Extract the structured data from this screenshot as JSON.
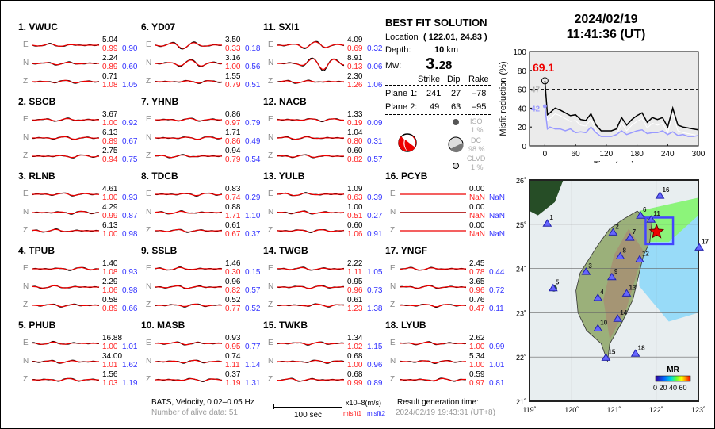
{
  "stations": [
    {
      "title": "1.  VWUC",
      "comps": [
        {
          "c": "E",
          "amp": "5.04",
          "m1": "0.99",
          "m2": "0.90"
        },
        {
          "c": "N",
          "amp": "2.24",
          "m1": "0.89",
          "m2": "0.60"
        },
        {
          "c": "Z",
          "amp": "0.71",
          "m1": "1.08",
          "m2": "1.05"
        }
      ]
    },
    {
      "title": "2.  SBCB",
      "comps": [
        {
          "c": "E",
          "amp": "3.67",
          "m1": "1.00",
          "m2": "0.92"
        },
        {
          "c": "N",
          "amp": "6.13",
          "m1": "0.89",
          "m2": "0.67"
        },
        {
          "c": "Z",
          "amp": "2.75",
          "m1": "0.94",
          "m2": "0.75"
        }
      ]
    },
    {
      "title": "3.  RLNB",
      "comps": [
        {
          "c": "E",
          "amp": "4.61",
          "m1": "1.00",
          "m2": "0.93"
        },
        {
          "c": "N",
          "amp": "4.29",
          "m1": "0.99",
          "m2": "0.87"
        },
        {
          "c": "Z",
          "amp": "6.13",
          "m1": "1.00",
          "m2": "0.98"
        }
      ]
    },
    {
      "title": "4.  TPUB",
      "comps": [
        {
          "c": "E",
          "amp": "1.40",
          "m1": "1.08",
          "m2": "0.93"
        },
        {
          "c": "N",
          "amp": "2.29",
          "m1": "1.06",
          "m2": "0.98"
        },
        {
          "c": "Z",
          "amp": "0.58",
          "m1": "0.89",
          "m2": "0.66"
        }
      ]
    },
    {
      "title": "5.  PHUB",
      "comps": [
        {
          "c": "E",
          "amp": "16.88",
          "m1": "1.00",
          "m2": "1.01"
        },
        {
          "c": "N",
          "amp": "34.00",
          "m1": "1.01",
          "m2": "1.62"
        },
        {
          "c": "Z",
          "amp": "1.56",
          "m1": "1.03",
          "m2": "1.19"
        }
      ]
    },
    {
      "title": "6.  YD07",
      "comps": [
        {
          "c": "E",
          "amp": "3.50",
          "m1": "0.33",
          "m2": "0.18"
        },
        {
          "c": "N",
          "amp": "3.16",
          "m1": "1.00",
          "m2": "0.56"
        },
        {
          "c": "Z",
          "amp": "1.55",
          "m1": "0.79",
          "m2": "0.51"
        }
      ]
    },
    {
      "title": "7.  YHNB",
      "comps": [
        {
          "c": "E",
          "amp": "0.86",
          "m1": "0.97",
          "m2": "0.79"
        },
        {
          "c": "N",
          "amp": "1.71",
          "m1": "0.86",
          "m2": "0.49"
        },
        {
          "c": "Z",
          "amp": "0.94",
          "m1": "0.79",
          "m2": "0.54"
        }
      ]
    },
    {
      "title": "8.  TDCB",
      "comps": [
        {
          "c": "E",
          "amp": "0.83",
          "m1": "0.74",
          "m2": "0.29"
        },
        {
          "c": "N",
          "amp": "0.88",
          "m1": "1.71",
          "m2": "1.10"
        },
        {
          "c": "Z",
          "amp": "0.61",
          "m1": "0.67",
          "m2": "0.37"
        }
      ]
    },
    {
      "title": "9.  SSLB",
      "comps": [
        {
          "c": "E",
          "amp": "1.46",
          "m1": "0.30",
          "m2": "0.15"
        },
        {
          "c": "N",
          "amp": "0.96",
          "m1": "0.82",
          "m2": "0.57"
        },
        {
          "c": "Z",
          "amp": "0.52",
          "m1": "0.77",
          "m2": "0.52"
        }
      ]
    },
    {
      "title": "10. MASB",
      "comps": [
        {
          "c": "E",
          "amp": "0.93",
          "m1": "0.95",
          "m2": "0.77"
        },
        {
          "c": "N",
          "amp": "0.74",
          "m1": "1.11",
          "m2": "1.14"
        },
        {
          "c": "Z",
          "amp": "0.37",
          "m1": "1.19",
          "m2": "1.31"
        }
      ]
    },
    {
      "title": "11. SXI1",
      "comps": [
        {
          "c": "E",
          "amp": "4.09",
          "m1": "0.69",
          "m2": "0.32"
        },
        {
          "c": "N",
          "amp": "8.91",
          "m1": "0.13",
          "m2": "0.06"
        },
        {
          "c": "Z",
          "amp": "2.30",
          "m1": "1.26",
          "m2": "1.06"
        }
      ]
    },
    {
      "title": "12. NACB",
      "comps": [
        {
          "c": "E",
          "amp": "1.33",
          "m1": "0.19",
          "m2": "0.09"
        },
        {
          "c": "N",
          "amp": "1.04",
          "m1": "0.80",
          "m2": "0.31"
        },
        {
          "c": "Z",
          "amp": "0.60",
          "m1": "0.82",
          "m2": "0.57"
        }
      ]
    },
    {
      "title": "13. YULB",
      "comps": [
        {
          "c": "E",
          "amp": "1.09",
          "m1": "0.63",
          "m2": "0.39"
        },
        {
          "c": "N",
          "amp": "1.00",
          "m1": "0.51",
          "m2": "0.27"
        },
        {
          "c": "Z",
          "amp": "0.60",
          "m1": "1.06",
          "m2": "0.91"
        }
      ]
    },
    {
      "title": "14. TWGB",
      "comps": [
        {
          "c": "E",
          "amp": "2.22",
          "m1": "1.11",
          "m2": "1.05"
        },
        {
          "c": "N",
          "amp": "0.95",
          "m1": "0.96",
          "m2": "0.73"
        },
        {
          "c": "Z",
          "amp": "0.61",
          "m1": "1.23",
          "m2": "1.38"
        }
      ]
    },
    {
      "title": "15. TWKB",
      "comps": [
        {
          "c": "E",
          "amp": "1.34",
          "m1": "1.02",
          "m2": "1.15"
        },
        {
          "c": "N",
          "amp": "0.68",
          "m1": "1.00",
          "m2": "0.96"
        },
        {
          "c": "Z",
          "amp": "0.68",
          "m1": "0.99",
          "m2": "0.89"
        }
      ]
    },
    {
      "title": "16. PCYB",
      "comps": [
        {
          "c": "E",
          "amp": "0.00",
          "m1": "NaN",
          "m2": "NaN"
        },
        {
          "c": "N",
          "amp": "0.00",
          "m1": "NaN",
          "m2": "NaN"
        },
        {
          "c": "Z",
          "amp": "0.00",
          "m1": "NaN",
          "m2": "NaN"
        }
      ]
    },
    {
      "title": "17. YNGF",
      "comps": [
        {
          "c": "E",
          "amp": "2.45",
          "m1": "0.78",
          "m2": "0.44"
        },
        {
          "c": "N",
          "amp": "3.65",
          "m1": "0.96",
          "m2": "0.72"
        },
        {
          "c": "Z",
          "amp": "0.76",
          "m1": "0.47",
          "m2": "0.11"
        }
      ]
    },
    {
      "title": "18. LYUB",
      "comps": [
        {
          "c": "E",
          "amp": "2.62",
          "m1": "1.00",
          "m2": "0.99"
        },
        {
          "c": "N",
          "amp": "5.34",
          "m1": "1.00",
          "m2": "1.01"
        },
        {
          "c": "Z",
          "amp": "0.59",
          "m1": "0.97",
          "m2": "0.81"
        }
      ]
    }
  ],
  "solution": {
    "title": "BEST FIT SOLUTION",
    "location_label": "Location",
    "location": "( 122.01,  24.83 )",
    "depth_label": "Depth:",
    "depth": "10",
    "depth_unit": "km",
    "mw_label": "Mw:",
    "mw_int": "3.",
    "mw_dec": "28",
    "headers": [
      "Strike",
      "Dip",
      "Rake"
    ],
    "planes": [
      {
        "label": "Plane 1:",
        "strike": "241",
        "dip": "27",
        "rake": "–78"
      },
      {
        "label": "Plane 2:",
        "strike": "49",
        "dip": "63",
        "rake": "–95"
      }
    ],
    "iso_label": "ISO",
    "iso": "1  %",
    "dc_label": "DC",
    "dc": "98 %",
    "clvd_label": "CLVD",
    "clvd": "1  %"
  },
  "footer": {
    "bats": "BATS, Velocity, 0.02–0.05 Hz",
    "alive": "Number of alive data: 51",
    "scale_unit": "x10–8(m/s)",
    "scale_bar": "100 sec",
    "misfit1": "misfit1",
    "misfit2": "misfit2",
    "gen_label": "Result generation time:",
    "gen_time": "2024/02/19 19:43:31 (UT+8)"
  },
  "header": {
    "date": "2024/02/19",
    "time": "11:41:36  (UT)"
  },
  "chart_data": {
    "type": "line",
    "ylabel": "Misfit reduction (%)",
    "xlabel": "Time (sec)",
    "xlim": [
      -30,
      300
    ],
    "ylim": [
      0,
      100
    ],
    "xticks": [
      "0",
      "60",
      "120",
      "180",
      "240",
      "300"
    ],
    "yticks": [
      "0",
      "20",
      "40",
      "60",
      "80",
      "100"
    ],
    "threshold": 60,
    "peak_label": "69.1",
    "gray_label": "47",
    "blue_label": "42",
    "x": [
      0,
      5,
      10,
      20,
      30,
      40,
      50,
      60,
      70,
      80,
      90,
      100,
      110,
      120,
      130,
      140,
      150,
      160,
      170,
      180,
      190,
      200,
      210,
      220,
      230,
      240,
      250,
      260,
      270,
      280,
      290,
      300
    ],
    "series": [
      {
        "name": "black",
        "values": [
          69,
          33,
          35,
          40,
          38,
          35,
          32,
          33,
          28,
          27,
          34,
          22,
          16,
          16,
          16,
          18,
          30,
          22,
          28,
          32,
          35,
          25,
          30,
          28,
          30,
          20,
          40,
          22,
          20,
          19,
          18,
          17
        ]
      },
      {
        "name": "blue",
        "values": [
          42,
          18,
          20,
          18,
          18,
          16,
          18,
          14,
          15,
          14,
          20,
          14,
          10,
          10,
          10,
          12,
          16,
          12,
          14,
          16,
          17,
          13,
          14,
          14,
          16,
          12,
          15,
          11,
          12,
          10,
          10,
          11
        ]
      }
    ]
  },
  "map": {
    "lon_ticks": [
      "119˚",
      "120˚",
      "121˚",
      "122˚",
      "123˚"
    ],
    "lat_ticks": [
      "26˚",
      "25˚",
      "24˚",
      "23˚",
      "22˚",
      "21˚"
    ],
    "legend_title": "MR",
    "legend_ticks": "0 20 40 60",
    "epicenter": [
      122.01,
      24.83
    ],
    "stations": [
      {
        "n": "1",
        "lon": 119.42,
        "lat": 25.01
      },
      {
        "n": "2",
        "lon": 120.98,
        "lat": 24.81
      },
      {
        "n": "3",
        "lon": 120.34,
        "lat": 23.92
      },
      {
        "n": "4",
        "lon": 120.62,
        "lat": 23.33
      },
      {
        "n": "5",
        "lon": 119.56,
        "lat": 23.55
      },
      {
        "n": "6",
        "lon": 121.63,
        "lat": 25.19
      },
      {
        "n": "7",
        "lon": 121.38,
        "lat": 24.69
      },
      {
        "n": "8",
        "lon": 121.15,
        "lat": 24.27
      },
      {
        "n": "9",
        "lon": 120.95,
        "lat": 23.8
      },
      {
        "n": "10",
        "lon": 120.62,
        "lat": 22.64
      },
      {
        "n": "11",
        "lon": 121.88,
        "lat": 25.1
      },
      {
        "n": "12",
        "lon": 121.61,
        "lat": 24.2
      },
      {
        "n": "13",
        "lon": 121.3,
        "lat": 23.43
      },
      {
        "n": "14",
        "lon": 121.09,
        "lat": 22.86
      },
      {
        "n": "15",
        "lon": 120.81,
        "lat": 21.98
      },
      {
        "n": "16",
        "lon": 122.09,
        "lat": 25.64
      },
      {
        "n": "17",
        "lon": 123.02,
        "lat": 24.47
      },
      {
        "n": "18",
        "lon": 121.51,
        "lat": 22.07
      }
    ]
  }
}
